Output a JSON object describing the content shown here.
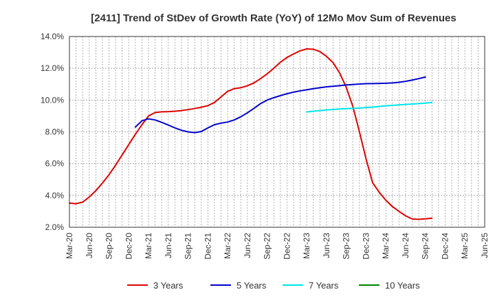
{
  "chart_data": {
    "type": "line",
    "title": "[2411]  Trend of StDev of Growth Rate (YoY) of 12Mo Mov Sum of Revenues",
    "xlabel": "",
    "ylabel": "",
    "ylim": [
      2.0,
      14.0
    ],
    "y_ticks": [
      "2.0%",
      "4.0%",
      "6.0%",
      "8.0%",
      "10.0%",
      "12.0%",
      "14.0%"
    ],
    "x_ticks": [
      "Mar-20",
      "Jun-20",
      "Sep-20",
      "Dec-20",
      "Mar-21",
      "Jun-21",
      "Sep-21",
      "Dec-21",
      "Mar-22",
      "Jun-22",
      "Sep-22",
      "Dec-22",
      "Mar-23",
      "Jun-23",
      "Sep-23",
      "Dec-23",
      "Mar-24",
      "Jun-24",
      "Sep-24",
      "Dec-24",
      "Mar-25",
      "Jun-25"
    ],
    "grid": true,
    "legend": "bottom",
    "colors": {
      "3 Years": "#dd0000",
      "5 Years": "#0000cc",
      "7 Years": "#00e5e5",
      "10 Years": "#008000"
    },
    "series": [
      {
        "name": "3 Years",
        "color": "#dd0000",
        "start_index": 0,
        "values": [
          3.52,
          3.48,
          3.58,
          3.9,
          4.3,
          4.78,
          5.3,
          5.9,
          6.55,
          7.2,
          7.85,
          8.45,
          9.0,
          9.22,
          9.26,
          9.27,
          9.3,
          9.34,
          9.4,
          9.47,
          9.55,
          9.65,
          9.85,
          10.2,
          10.55,
          10.72,
          10.78,
          10.9,
          11.08,
          11.35,
          11.65,
          12.0,
          12.38,
          12.68,
          12.9,
          13.1,
          13.22,
          13.2,
          13.05,
          12.75,
          12.35,
          11.7,
          10.8,
          9.6,
          8.0,
          6.3,
          4.8,
          4.2,
          3.7,
          3.3,
          3.0,
          2.72,
          2.52,
          2.5,
          2.53,
          2.57
        ]
      },
      {
        "name": "5 Years",
        "color": "#0000cc",
        "start_index": 10,
        "values": [
          8.3,
          8.7,
          8.82,
          8.75,
          8.6,
          8.43,
          8.25,
          8.1,
          8.0,
          7.95,
          8.02,
          8.25,
          8.45,
          8.55,
          8.62,
          8.75,
          8.95,
          9.2,
          9.48,
          9.78,
          10.0,
          10.15,
          10.28,
          10.4,
          10.5,
          10.58,
          10.65,
          10.72,
          10.78,
          10.83,
          10.87,
          10.91,
          10.95,
          10.98,
          11.01,
          11.03,
          11.04,
          11.05,
          11.06,
          11.08,
          11.12,
          11.18,
          11.26,
          11.35,
          11.45
        ]
      },
      {
        "name": "7 Years",
        "color": "#00e5e5",
        "start_index": 36,
        "values": [
          9.25,
          9.3,
          9.34,
          9.38,
          9.41,
          9.44,
          9.46,
          9.48,
          9.5,
          9.53,
          9.56,
          9.6,
          9.64,
          9.67,
          9.7,
          9.73,
          9.75,
          9.78,
          9.81,
          9.85
        ]
      },
      {
        "name": "10 Years",
        "color": "#008000",
        "start_index": 0,
        "values": []
      }
    ]
  }
}
